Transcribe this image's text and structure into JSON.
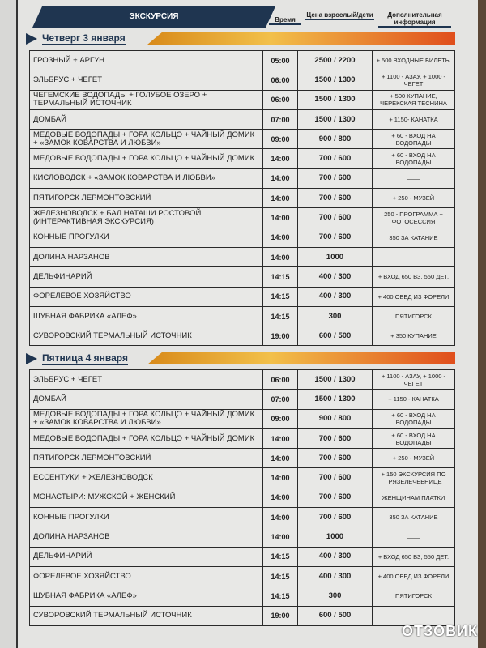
{
  "header": {
    "title": "ЭКСКУРСИЯ",
    "col_time": "Время",
    "col_price": "Цена взрослый/дети",
    "col_info": "Дополнительная информация"
  },
  "days": [
    {
      "label": "Четверг 3 января",
      "rows": [
        [
          "ГРОЗНЫЙ + АРГУН",
          "05:00",
          "2500 / 2200",
          "+ 500 ВХОДНЫЕ БИЛЕТЫ"
        ],
        [
          "ЭЛЬБРУС + ЧЕГЕТ",
          "06:00",
          "1500 / 1300",
          "+ 1100 - АЗАУ, + 1000 - ЧЕГЕТ"
        ],
        [
          "ЧЕГЕМСКИЕ ВОДОПАДЫ + ГОЛУБОЕ ОЗЕРО + ТЕРМАЛЬНЫЙ ИСТОЧНИК",
          "06:00",
          "1500 / 1300",
          "+ 500 КУПАНИЕ, ЧЕРЕКСКАЯ ТЕСНИНА"
        ],
        [
          "ДОМБАЙ",
          "07:00",
          "1500 / 1300",
          "+ 1150- КАНАТКА"
        ],
        [
          "МЕДОВЫЕ ВОДОПАДЫ + ГОРА КОЛЬЦО + ЧАЙНЫЙ ДОМИК + «ЗАМОК КОВАРСТВА И ЛЮБВИ»",
          "09:00",
          "900 / 800",
          "+ 60 - ВХОД НА ВОДОПАДЫ"
        ],
        [
          "МЕДОВЫЕ ВОДОПАДЫ + ГОРА КОЛЬЦО + ЧАЙНЫЙ ДОМИК",
          "14:00",
          "700 / 600",
          "+ 60 - ВХОД НА ВОДОПАДЫ"
        ],
        [
          "КИСЛОВОДСК + «ЗАМОК КОВАРСТВА И ЛЮБВИ»",
          "14:00",
          "700 / 600",
          "——"
        ],
        [
          "ПЯТИГОРСК ЛЕРМОНТОВСКИЙ",
          "14:00",
          "700 / 600",
          "+ 250 - МУЗЕЙ"
        ],
        [
          "ЖЕЛЕЗНОВОДСК + БАЛ НАТАШИ РОСТОВОЙ (ИНТЕРАКТИВНАЯ ЭКСКУРСИЯ)",
          "14:00",
          "700 / 600",
          "250 - ПРОГРАММА + ФОТОСЕССИЯ"
        ],
        [
          "КОННЫЕ ПРОГУЛКИ",
          "14:00",
          "700 / 600",
          "350 ЗА КАТАНИЕ"
        ],
        [
          "ДОЛИНА НАРЗАНОВ",
          "14:00",
          "1000",
          "——"
        ],
        [
          "ДЕЛЬФИНАРИЙ",
          "14:15",
          "400 / 300",
          "+ ВХОД 650 ВЗ, 550 ДЕТ."
        ],
        [
          "ФОРЕЛЕВОЕ ХОЗЯЙСТВО",
          "14:15",
          "400 / 300",
          "+ 400 ОБЕД ИЗ ФОРЕЛИ"
        ],
        [
          "ШУБНАЯ ФАБРИКА «АЛЕФ»",
          "14:15",
          "300",
          "ПЯТИГОРСК"
        ],
        [
          "СУВОРОВСКИЙ ТЕРМАЛЬНЫЙ ИСТОЧНИК",
          "19:00",
          "600 / 500",
          "+ 350 КУПАНИЕ"
        ]
      ]
    },
    {
      "label": "Пятница 4 января",
      "rows": [
        [
          "ЭЛЬБРУС + ЧЕГЕТ",
          "06:00",
          "1500 / 1300",
          "+ 1100 - АЗАУ, + 1000 - ЧЕГЕТ"
        ],
        [
          "ДОМБАЙ",
          "07:00",
          "1500 / 1300",
          "+ 1150 - КАНАТКА"
        ],
        [
          "МЕДОВЫЕ ВОДОПАДЫ + ГОРА КОЛЬЦО + ЧАЙНЫЙ ДОМИК + «ЗАМОК КОВАРСТВА И ЛЮБВИ»",
          "09:00",
          "900 / 800",
          "+ 60 - ВХОД НА ВОДОПАДЫ"
        ],
        [
          "МЕДОВЫЕ ВОДОПАДЫ + ГОРА КОЛЬЦО + ЧАЙНЫЙ ДОМИК",
          "14:00",
          "700 / 600",
          "+ 60 - ВХОД НА ВОДОПАДЫ"
        ],
        [
          "ПЯТИГОРСК ЛЕРМОНТОВСКИЙ",
          "14:00",
          "700 / 600",
          "+ 250 - МУЗЕЙ"
        ],
        [
          "ЕССЕНТУКИ + ЖЕЛЕЗНОВОДСК",
          "14:00",
          "700 / 600",
          "+ 150 ЭКСКУРСИЯ ПО ГРЯЗЕЛЕЧЕБНИЦЕ"
        ],
        [
          "МОНАСТЫРИ:  МУЖСКОЙ + ЖЕНСКИЙ",
          "14:00",
          "700 / 600",
          "ЖЕНЩИНАМ ПЛАТКИ"
        ],
        [
          "КОННЫЕ ПРОГУЛКИ",
          "14:00",
          "700 / 600",
          "350 ЗА КАТАНИЕ"
        ],
        [
          "ДОЛИНА НАРЗАНОВ",
          "14:00",
          "1000",
          "——"
        ],
        [
          "ДЕЛЬФИНАРИЙ",
          "14:15",
          "400 / 300",
          "+ ВХОД 650 ВЗ, 550 ДЕТ."
        ],
        [
          "ФОРЕЛЕВОЕ ХОЗЯЙСТВО",
          "14:15",
          "400 / 300",
          "+ 400 ОБЕД ИЗ ФОРЕЛИ"
        ],
        [
          "ШУБНАЯ ФАБРИКА «АЛЕФ»",
          "14:15",
          "300",
          "ПЯТИГОРСК"
        ],
        [
          "СУВОРОВСКИЙ ТЕРМАЛЬНЫЙ ИСТОЧНИК",
          "19:00",
          "600 / 500",
          ""
        ]
      ]
    }
  ],
  "watermark": "ОТЗОВИК"
}
